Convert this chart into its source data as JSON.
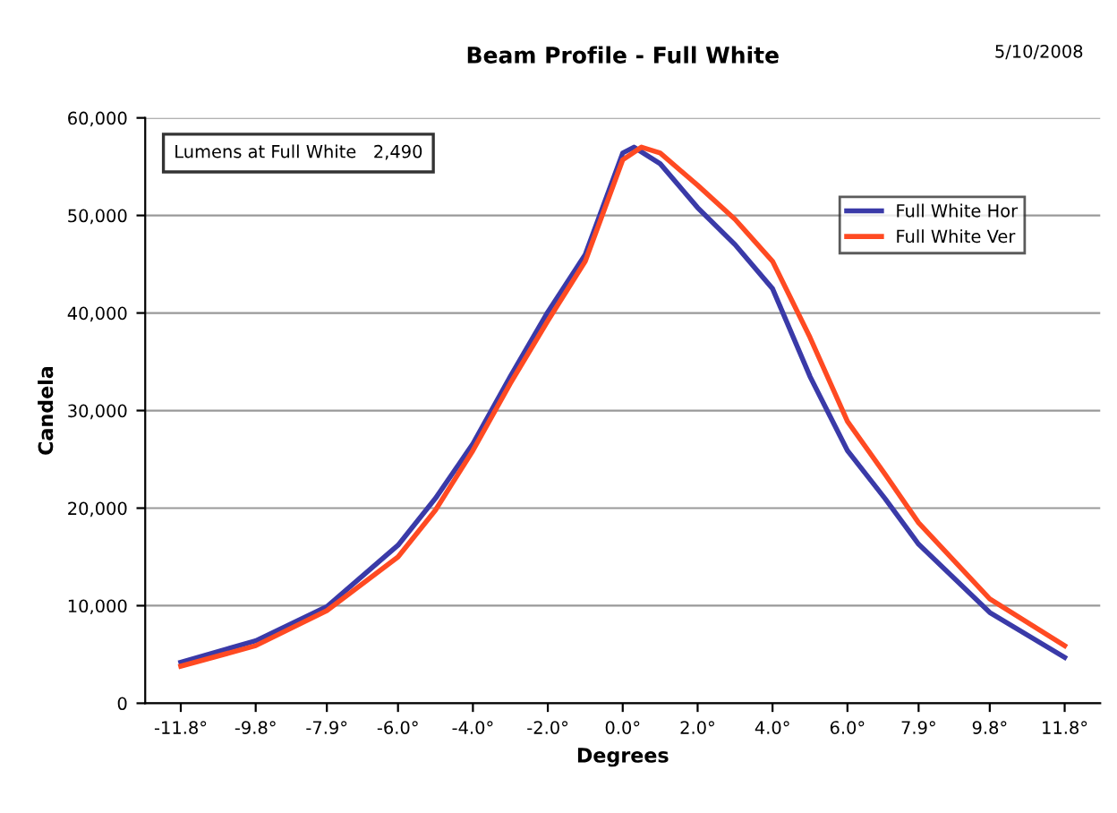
{
  "chart_data": {
    "type": "line",
    "title": "Beam Profile - Full White",
    "xlabel": "Degrees",
    "ylabel": "Candela",
    "annotations": [
      "5/10/2008",
      "Lumens at Full White   2,490"
    ],
    "series": [
      {
        "name": "Full White Hor",
        "color": "#3a3aa8",
        "x": [
          -11.8,
          -9.8,
          -7.9,
          -6.0,
          -5.0,
          -4.0,
          -3.0,
          -2.0,
          -1.0,
          0.0,
          0.3,
          1.0,
          2.0,
          3.0,
          4.0,
          5.0,
          6.0,
          7.0,
          7.9,
          9.8,
          11.8
        ],
        "values": [
          4200,
          6400,
          9900,
          16200,
          21000,
          26600,
          33500,
          40100,
          46000,
          56400,
          57000,
          55300,
          50800,
          47000,
          42500,
          33500,
          25900,
          21000,
          16300,
          9300,
          4700
        ]
      },
      {
        "name": "Full White Ver",
        "color": "#ff4a22",
        "x": [
          -11.8,
          -9.8,
          -7.9,
          -6.0,
          -5.0,
          -4.0,
          -3.0,
          -2.0,
          -1.0,
          0.0,
          0.5,
          1.0,
          2.0,
          3.0,
          4.0,
          5.0,
          6.0,
          7.0,
          7.9,
          9.8,
          11.8
        ],
        "values": [
          3800,
          5900,
          9500,
          15000,
          19800,
          25900,
          32800,
          39200,
          45300,
          55700,
          57000,
          56400,
          53100,
          49600,
          45300,
          37500,
          28900,
          23500,
          18500,
          10700,
          5900
        ]
      }
    ],
    "xlim": [
      -12.75,
      12.75
    ],
    "xticks": [
      {
        "value": -11.8,
        "label": "-11.8°"
      },
      {
        "value": -9.8,
        "label": "-9.8°"
      },
      {
        "value": -7.9,
        "label": "-7.9°"
      },
      {
        "value": -6.0,
        "label": "-6.0°"
      },
      {
        "value": -4.0,
        "label": "-4.0°"
      },
      {
        "value": -2.0,
        "label": "-2.0°"
      },
      {
        "value": 0.0,
        "label": "0.0°"
      },
      {
        "value": 2.0,
        "label": "2.0°"
      },
      {
        "value": 4.0,
        "label": "4.0°"
      },
      {
        "value": 6.0,
        "label": "6.0°"
      },
      {
        "value": 7.9,
        "label": "7.9°"
      },
      {
        "value": 9.8,
        "label": "9.8°"
      },
      {
        "value": 11.8,
        "label": "11.8°"
      }
    ],
    "ylim": [
      0,
      60000
    ],
    "yticks": [
      0,
      {
        "value": 10000,
        "label": "10,000"
      },
      {
        "value": 20000,
        "label": "20,000"
      },
      {
        "value": 30000,
        "label": "30,000"
      },
      {
        "value": 40000,
        "label": "40,000"
      },
      {
        "value": 50000,
        "label": "50,000"
      },
      {
        "value": 60000,
        "label": "60,000"
      }
    ],
    "grid": "y",
    "legend": "top right",
    "marker": "none",
    "line_style": "solid"
  }
}
